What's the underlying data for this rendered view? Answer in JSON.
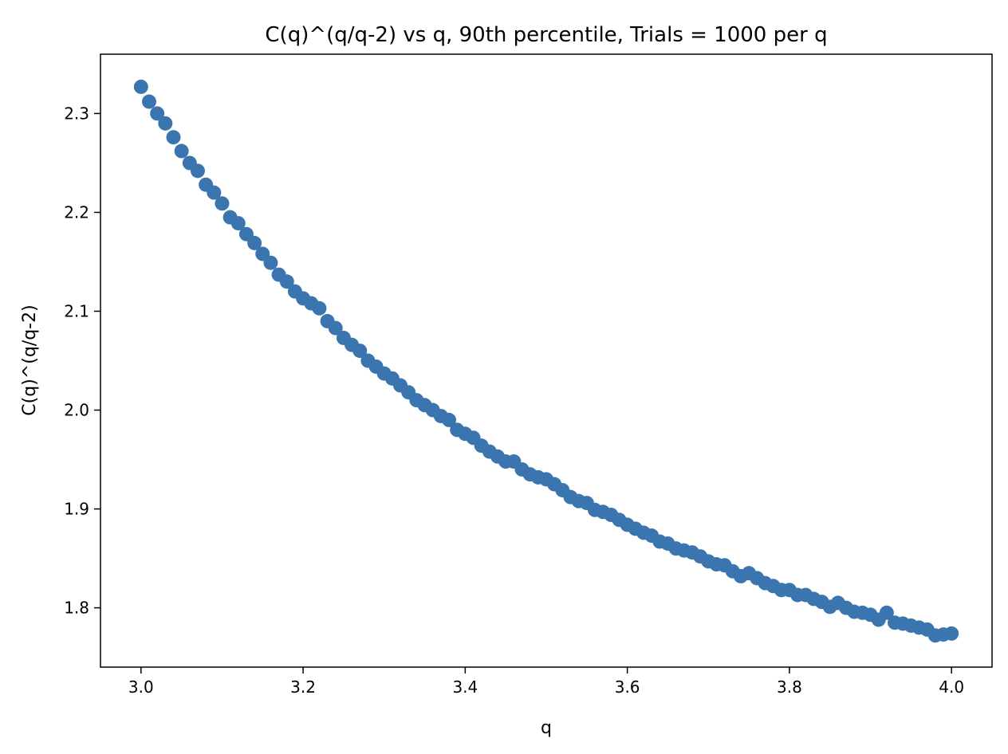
{
  "chart_data": {
    "type": "scatter",
    "title": "C(q)^(q/q-2) vs q, 90th percentile, Trials = 1000 per q",
    "xlabel": "q",
    "ylabel": "C(q)^(q/q-2)",
    "xlim": [
      2.95,
      4.05
    ],
    "ylim": [
      1.74,
      2.36
    ],
    "xticks": [
      "3.0",
      "3.2",
      "3.4",
      "3.6",
      "3.8",
      "4.0"
    ],
    "yticks": [
      "1.8",
      "1.9",
      "2.0",
      "2.1",
      "2.2",
      "2.3"
    ],
    "grid": false,
    "legend": false,
    "marker_color": "#3b75af",
    "x": [
      3.0,
      3.01,
      3.02,
      3.03,
      3.04,
      3.05,
      3.06,
      3.07,
      3.08,
      3.09,
      3.1,
      3.11,
      3.12,
      3.13,
      3.14,
      3.15,
      3.16,
      3.17,
      3.18,
      3.19,
      3.2,
      3.21,
      3.22,
      3.23,
      3.24,
      3.25,
      3.26,
      3.27,
      3.28,
      3.29,
      3.3,
      3.31,
      3.32,
      3.33,
      3.34,
      3.35,
      3.36,
      3.37,
      3.38,
      3.39,
      3.4,
      3.41,
      3.42,
      3.43,
      3.44,
      3.45,
      3.46,
      3.47,
      3.48,
      3.49,
      3.5,
      3.51,
      3.52,
      3.53,
      3.54,
      3.55,
      3.56,
      3.57,
      3.58,
      3.59,
      3.6,
      3.61,
      3.62,
      3.63,
      3.64,
      3.65,
      3.66,
      3.67,
      3.68,
      3.69,
      3.7,
      3.71,
      3.72,
      3.73,
      3.74,
      3.75,
      3.76,
      3.77,
      3.78,
      3.79,
      3.8,
      3.81,
      3.82,
      3.83,
      3.84,
      3.85,
      3.86,
      3.87,
      3.88,
      3.89,
      3.9,
      3.91,
      3.92,
      3.93,
      3.94,
      3.95,
      3.96,
      3.97,
      3.98,
      3.99,
      4.0
    ],
    "y": [
      2.327,
      2.312,
      2.3,
      2.29,
      2.276,
      2.262,
      2.25,
      2.242,
      2.228,
      2.22,
      2.209,
      2.195,
      2.189,
      2.178,
      2.169,
      2.158,
      2.149,
      2.137,
      2.13,
      2.12,
      2.113,
      2.108,
      2.103,
      2.09,
      2.083,
      2.073,
      2.066,
      2.06,
      2.05,
      2.044,
      2.037,
      2.032,
      2.025,
      2.018,
      2.01,
      2.005,
      2.0,
      1.994,
      1.99,
      1.98,
      1.976,
      1.972,
      1.964,
      1.958,
      1.953,
      1.948,
      1.948,
      1.94,
      1.935,
      1.932,
      1.93,
      1.925,
      1.919,
      1.912,
      1.908,
      1.906,
      1.899,
      1.897,
      1.894,
      1.889,
      1.884,
      1.88,
      1.876,
      1.873,
      1.867,
      1.865,
      1.86,
      1.858,
      1.856,
      1.852,
      1.847,
      1.844,
      1.843,
      1.837,
      1.832,
      1.835,
      1.83,
      1.825,
      1.822,
      1.818,
      1.818,
      1.813,
      1.813,
      1.809,
      1.806,
      1.801,
      1.805,
      1.8,
      1.796,
      1.795,
      1.793,
      1.788,
      1.795,
      1.785,
      1.784,
      1.782,
      1.78,
      1.778,
      1.772,
      1.773,
      1.774
    ]
  }
}
